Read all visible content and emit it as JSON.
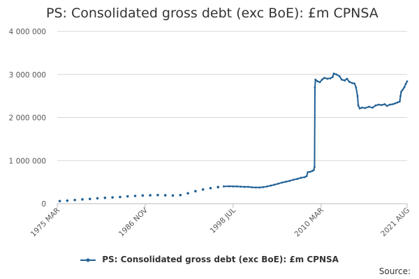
{
  "chart_data": {
    "type": "line",
    "title": "PS: Consolidated gross debt (exc BoE): £m CPNSA",
    "series_name": "PS: Consolidated gross debt (exc BoE): £m CPNSA",
    "source_label": "Source:",
    "y_ticks": [
      "0",
      "1 000 000",
      "2 000 000",
      "3 000 000",
      "4 000 000"
    ],
    "y_tick_values": [
      0,
      1000000,
      2000000,
      3000000,
      4000000
    ],
    "ylim": [
      0,
      4000000
    ],
    "x_ticks": [
      "1975 MAR",
      "1986 NOV",
      "1998 JUL",
      "2010 MAR",
      "2021 AUG"
    ],
    "x_tick_values": [
      1975.17,
      1986.83,
      1998.5,
      2010.17,
      2021.58
    ],
    "xlim": [
      1975.17,
      2021.58
    ],
    "color": "#206095",
    "annual_points": [
      [
        1975.5,
        60000
      ],
      [
        1976.5,
        70000
      ],
      [
        1977.5,
        85000
      ],
      [
        1978.5,
        100000
      ],
      [
        1979.5,
        110000
      ],
      [
        1980.5,
        125000
      ],
      [
        1981.5,
        135000
      ],
      [
        1982.5,
        145000
      ],
      [
        1983.5,
        155000
      ],
      [
        1984.5,
        170000
      ],
      [
        1985.5,
        180000
      ],
      [
        1986.5,
        190000
      ],
      [
        1987.5,
        195000
      ],
      [
        1988.5,
        200000
      ],
      [
        1989.5,
        195000
      ],
      [
        1990.5,
        190000
      ],
      [
        1991.5,
        200000
      ],
      [
        1992.5,
        240000
      ],
      [
        1993.5,
        290000
      ],
      [
        1994.5,
        330000
      ],
      [
        1995.5,
        360000
      ],
      [
        1996.5,
        385000
      ]
    ],
    "monthly_points": [
      [
        1997.25,
        400000
      ],
      [
        1998.0,
        405000
      ],
      [
        1998.5,
        400000
      ],
      [
        1999.0,
        400000
      ],
      [
        1999.5,
        395000
      ],
      [
        2000.0,
        390000
      ],
      [
        2000.5,
        390000
      ],
      [
        2001.0,
        380000
      ],
      [
        2001.5,
        375000
      ],
      [
        2002.0,
        375000
      ],
      [
        2002.5,
        385000
      ],
      [
        2003.0,
        400000
      ],
      [
        2003.5,
        420000
      ],
      [
        2004.0,
        440000
      ],
      [
        2004.5,
        465000
      ],
      [
        2005.0,
        490000
      ],
      [
        2005.5,
        510000
      ],
      [
        2006.0,
        530000
      ],
      [
        2006.5,
        555000
      ],
      [
        2007.0,
        575000
      ],
      [
        2007.5,
        600000
      ],
      [
        2008.0,
        615000
      ],
      [
        2008.25,
        640000
      ],
      [
        2008.4,
        730000
      ],
      [
        2008.7,
        740000
      ],
      [
        2009.0,
        760000
      ],
      [
        2009.2,
        780000
      ],
      [
        2009.3,
        850000
      ],
      [
        2009.35,
        2700000
      ],
      [
        2009.42,
        2880000
      ],
      [
        2009.7,
        2840000
      ],
      [
        2010.0,
        2820000
      ],
      [
        2010.3,
        2880000
      ],
      [
        2010.6,
        2920000
      ],
      [
        2011.0,
        2900000
      ],
      [
        2011.4,
        2910000
      ],
      [
        2011.7,
        2940000
      ],
      [
        2011.85,
        3020000
      ],
      [
        2012.2,
        3000000
      ],
      [
        2012.6,
        2960000
      ],
      [
        2012.9,
        2880000
      ],
      [
        2013.3,
        2860000
      ],
      [
        2013.6,
        2900000
      ],
      [
        2013.9,
        2830000
      ],
      [
        2014.3,
        2800000
      ],
      [
        2014.6,
        2790000
      ],
      [
        2014.8,
        2700000
      ],
      [
        2015.0,
        2500000
      ],
      [
        2015.1,
        2280000
      ],
      [
        2015.3,
        2210000
      ],
      [
        2015.6,
        2230000
      ],
      [
        2016.0,
        2220000
      ],
      [
        2016.5,
        2250000
      ],
      [
        2017.0,
        2230000
      ],
      [
        2017.4,
        2280000
      ],
      [
        2017.8,
        2300000
      ],
      [
        2018.2,
        2290000
      ],
      [
        2018.6,
        2310000
      ],
      [
        2018.9,
        2270000
      ],
      [
        2019.3,
        2300000
      ],
      [
        2019.7,
        2310000
      ],
      [
        2020.0,
        2330000
      ],
      [
        2020.3,
        2350000
      ],
      [
        2020.6,
        2370000
      ],
      [
        2020.7,
        2500000
      ],
      [
        2020.8,
        2600000
      ],
      [
        2021.0,
        2650000
      ],
      [
        2021.2,
        2700000
      ],
      [
        2021.4,
        2780000
      ],
      [
        2021.58,
        2840000
      ]
    ]
  }
}
